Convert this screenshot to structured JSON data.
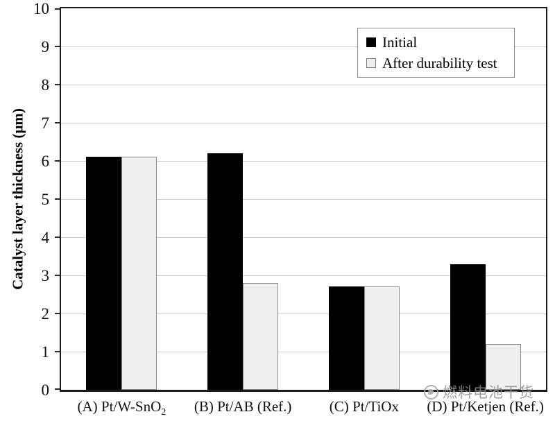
{
  "chart_data": {
    "type": "bar",
    "title": "",
    "categories": [
      "(A) Pt/W-SnO₂",
      "(B) Pt/AB (Ref.)",
      "(C) Pt/TiOx",
      "(D) Pt/Ketjen (Ref.)"
    ],
    "series": [
      {
        "name": "Initial",
        "values": [
          6.1,
          6.2,
          2.7,
          3.3
        ],
        "fill": "#000000",
        "border": "#000000"
      },
      {
        "name": "After durability test",
        "values": [
          6.1,
          2.8,
          2.7,
          1.2
        ],
        "fill": "#efefef",
        "border": "#8c8c8c"
      }
    ],
    "xlabel": "",
    "ylabel": "Catalyst layer thickness (μm)",
    "ylim": [
      0,
      10
    ],
    "yticks": [
      0,
      1,
      2,
      3,
      4,
      5,
      6,
      7,
      8,
      9,
      10
    ],
    "grid": true,
    "legend_position": "top-right",
    "colors": {
      "axis": "#1a1a1a",
      "gridline": "#c9c9c9",
      "background": "#ffffff",
      "tick": "#2a2a2a"
    }
  },
  "watermark": {
    "text": "燃料电池干货",
    "color": "#8f8f8f"
  }
}
